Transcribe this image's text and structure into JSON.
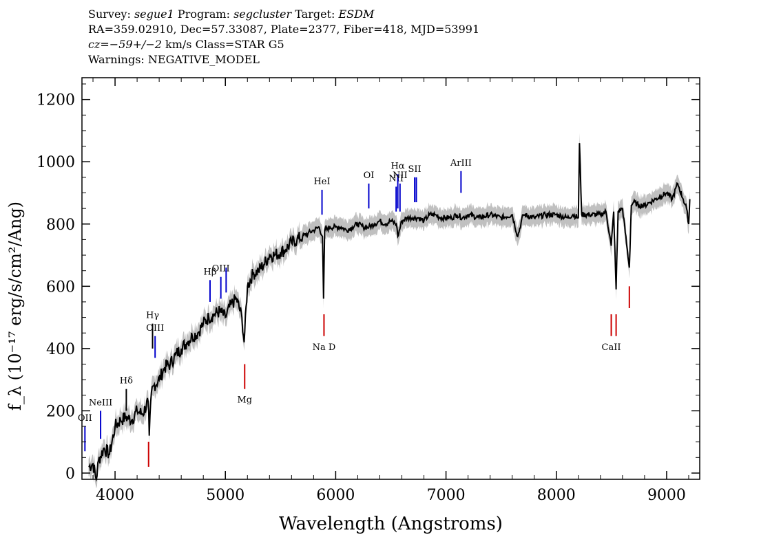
{
  "header": {
    "survey_label": "Survey:",
    "survey_value": "segue1",
    "program_label": "Program:",
    "program_value": "segcluster",
    "target_label": "Target:",
    "target_value": "ESDM",
    "line2": "RA=359.02910, Dec=57.33087, Plate=2377, Fiber=418, MJD=53991",
    "cz_label": "cz=",
    "cz_value": "−59+/−2",
    "cz_rest": "km/s Class=STAR G5",
    "line4": "Warnings: NEGATIVE_MODEL"
  },
  "chart_data": {
    "type": "line",
    "xlabel": "Wavelength (Angstroms)",
    "ylabel": "f_λ (10⁻¹⁷ erg/s/cm²/Ang)",
    "xlim": [
      3700,
      9300
    ],
    "ylim": [
      -20,
      1270
    ],
    "x_ticks": [
      4000,
      5000,
      6000,
      7000,
      8000,
      9000
    ],
    "x_tick_labels": [
      "4000",
      "5000",
      "6000",
      "7000",
      "8000",
      "9000"
    ],
    "y_ticks": [
      0,
      200,
      400,
      600,
      800,
      1000,
      1200
    ],
    "y_tick_labels": [
      "0",
      "200",
      "400",
      "600",
      "800",
      "1000",
      "1200"
    ],
    "series": [
      {
        "name": "flux",
        "color": "#000000",
        "x": [
          3760,
          3800,
          3830,
          3850,
          3900,
          3950,
          4000,
          4050,
          4100,
          4150,
          4200,
          4250,
          4300,
          4310,
          4330,
          4350,
          4400,
          4450,
          4500,
          4550,
          4600,
          4650,
          4700,
          4750,
          4800,
          4850,
          4900,
          4950,
          5000,
          5050,
          5100,
          5150,
          5170,
          5200,
          5250,
          5300,
          5350,
          5400,
          5450,
          5500,
          5550,
          5600,
          5650,
          5700,
          5750,
          5800,
          5850,
          5880,
          5890,
          5900,
          5950,
          6000,
          6050,
          6100,
          6150,
          6200,
          6250,
          6300,
          6350,
          6400,
          6450,
          6500,
          6550,
          6563,
          6600,
          6650,
          6700,
          6750,
          6800,
          6850,
          6900,
          6950,
          7000,
          7050,
          7100,
          7150,
          7200,
          7300,
          7400,
          7500,
          7600,
          7650,
          7700,
          7800,
          7900,
          8000,
          8100,
          8150,
          8200,
          8210,
          8230,
          8300,
          8400,
          8450,
          8498,
          8520,
          8542,
          8560,
          8600,
          8662,
          8680,
          8700,
          8750,
          8800,
          8850,
          8900,
          8950,
          9000,
          9050,
          9100,
          9150,
          9180,
          9200,
          9210
        ],
        "y": [
          20,
          30,
          -20,
          40,
          80,
          60,
          150,
          170,
          180,
          170,
          200,
          190,
          230,
          120,
          260,
          280,
          300,
          340,
          350,
          380,
          400,
          420,
          440,
          450,
          480,
          500,
          510,
          520,
          500,
          540,
          560,
          500,
          420,
          600,
          640,
          650,
          670,
          700,
          700,
          710,
          720,
          740,
          750,
          760,
          770,
          780,
          790,
          760,
          560,
          780,
          790,
          790,
          790,
          780,
          790,
          800,
          790,
          790,
          800,
          810,
          800,
          810,
          800,
          760,
          810,
          820,
          820,
          820,
          810,
          830,
          830,
          820,
          820,
          820,
          830,
          820,
          830,
          820,
          830,
          820,
          830,
          760,
          830,
          820,
          830,
          830,
          820,
          830,
          820,
          1060,
          830,
          830,
          830,
          840,
          730,
          840,
          590,
          840,
          850,
          660,
          860,
          870,
          860,
          860,
          870,
          880,
          890,
          900,
          880,
          930,
          880,
          850,
          800,
          880
        ]
      }
    ],
    "error_band": {
      "name": "uncertainty",
      "color": "#c0c0c0",
      "approx_width": 25
    },
    "line_markers": [
      {
        "label": "OII",
        "wavelength": 3727,
        "color": "#0000cc",
        "y_from": 70,
        "y_to": 150
      },
      {
        "label": "NeIII",
        "wavelength": 3869,
        "color": "#0000cc",
        "y_from": 110,
        "y_to": 200
      },
      {
        "label": "Hδ",
        "wavelength": 4102,
        "color": "#000000",
        "y_from": 200,
        "y_to": 270
      },
      {
        "label": "Hγ",
        "wavelength": 4340,
        "color": "#000000",
        "y_from": 400,
        "y_to": 480
      },
      {
        "label": "OIII",
        "wavelength": 4363,
        "color": "#0000cc",
        "y_from": 370,
        "y_to": 440
      },
      {
        "label": "Hβ",
        "wavelength": 4861,
        "color": "#0000cc",
        "y_from": 550,
        "y_to": 620
      },
      {
        "label": "OIII",
        "wavelength": 4959,
        "color": "#0000cc",
        "y_from": 560,
        "y_to": 630
      },
      {
        "label": "",
        "wavelength": 5007,
        "color": "#0000cc",
        "y_from": 580,
        "y_to": 660
      },
      {
        "label": "HeI",
        "wavelength": 5876,
        "color": "#0000cc",
        "y_from": 830,
        "y_to": 910
      },
      {
        "label": "OI",
        "wavelength": 6300,
        "color": "#0000cc",
        "y_from": 850,
        "y_to": 930
      },
      {
        "label": "NII",
        "wavelength": 6548,
        "color": "#0000cc",
        "y_from": 840,
        "y_to": 920
      },
      {
        "label": "Hα",
        "wavelength": 6563,
        "color": "#0000cc",
        "y_from": 850,
        "y_to": 960
      },
      {
        "label": "NII",
        "wavelength": 6583,
        "color": "#0000cc",
        "y_from": 840,
        "y_to": 930
      },
      {
        "label": "SII",
        "wavelength": 6716,
        "color": "#0000cc",
        "y_from": 870,
        "y_to": 950
      },
      {
        "label": "",
        "wavelength": 6731,
        "color": "#0000cc",
        "y_from": 870,
        "y_to": 950
      },
      {
        "label": "ArIII",
        "wavelength": 7136,
        "color": "#0000cc",
        "y_from": 900,
        "y_to": 970
      },
      {
        "label": "",
        "wavelength": 4304,
        "color": "#cc0000",
        "y_from": 20,
        "y_to": 100
      },
      {
        "label": "Mg",
        "wavelength": 5175,
        "color": "#cc0000",
        "y_from": 270,
        "y_to": 350
      },
      {
        "label": "Na D",
        "wavelength": 5894,
        "color": "#cc0000",
        "y_from": 440,
        "y_to": 510
      },
      {
        "label": "CaII",
        "wavelength": 8498,
        "color": "#cc0000",
        "y_from": 440,
        "y_to": 510
      },
      {
        "label": "",
        "wavelength": 8542,
        "color": "#cc0000",
        "y_from": 440,
        "y_to": 510
      },
      {
        "label": "",
        "wavelength": 8662,
        "color": "#cc0000",
        "y_from": 530,
        "y_to": 600
      }
    ],
    "grid": false,
    "legend": "none"
  }
}
